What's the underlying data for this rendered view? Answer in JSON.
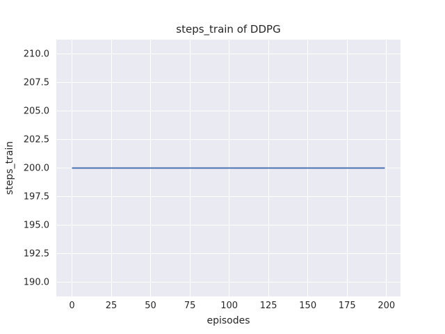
{
  "figure": {
    "background": "#ffffff",
    "panel_background": "#eaeaf2",
    "grid_color": "#ffffff",
    "text_color": "#262626"
  },
  "chart_data": {
    "type": "line",
    "title": "steps_train of DDPG",
    "xlabel": "episodes",
    "ylabel": "steps_train",
    "grid": true,
    "legend": false,
    "xlim": [
      -9.95,
      208.95
    ],
    "ylim": [
      188.75,
      211.25
    ],
    "x_ticks": [
      {
        "value": 0,
        "label": "0"
      },
      {
        "value": 25,
        "label": "25"
      },
      {
        "value": 50,
        "label": "50"
      },
      {
        "value": 75,
        "label": "75"
      },
      {
        "value": 100,
        "label": "100"
      },
      {
        "value": 125,
        "label": "125"
      },
      {
        "value": 150,
        "label": "150"
      },
      {
        "value": 175,
        "label": "175"
      },
      {
        "value": 200,
        "label": "200"
      }
    ],
    "y_ticks": [
      {
        "value": 190.0,
        "label": "190.0"
      },
      {
        "value": 192.5,
        "label": "192.5"
      },
      {
        "value": 195.0,
        "label": "195.0"
      },
      {
        "value": 197.5,
        "label": "197.5"
      },
      {
        "value": 200.0,
        "label": "200.0"
      },
      {
        "value": 202.5,
        "label": "202.5"
      },
      {
        "value": 205.0,
        "label": "205.0"
      },
      {
        "value": 207.5,
        "label": "207.5"
      },
      {
        "value": 210.0,
        "label": "210.0"
      }
    ],
    "series": [
      {
        "name": "steps_train",
        "color": "#4c72b0",
        "linewidth": 2,
        "x": [
          0,
          199
        ],
        "y": [
          200,
          200
        ]
      }
    ]
  }
}
